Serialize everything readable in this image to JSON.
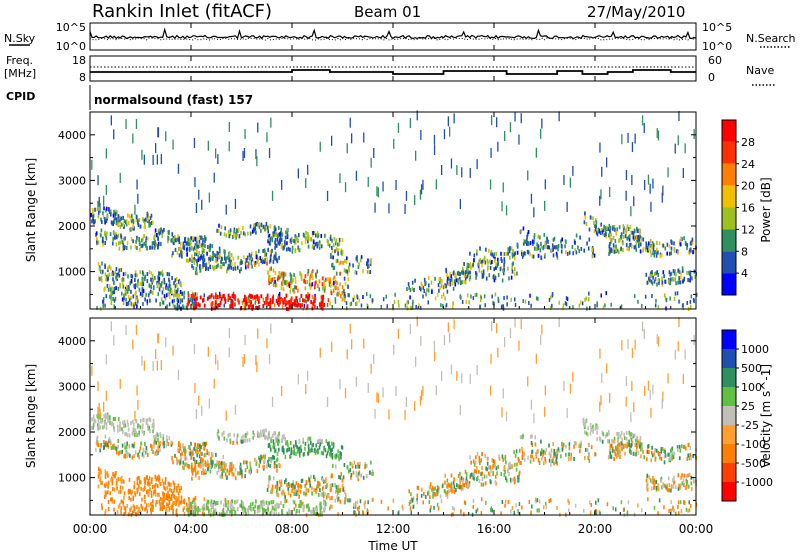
{
  "header": {
    "station": "Rankin Inlet (fitACF)",
    "beam": "Beam 01",
    "date": "27/May/2010"
  },
  "top_labels": {
    "nsky": "N.Sky",
    "nsearch": "N.Search",
    "freq_line1": "Freq.",
    "freq_line2": "[MHz]",
    "nave": "Nave",
    "cpid": "CPID",
    "cpid_value": "normalsound (fast) 157",
    "noise_tick_high": "10^5",
    "noise_tick_low": "10^0",
    "freq_tick_high": "18",
    "freq_tick_low": "8",
    "nave_tick_high": "60",
    "nave_tick_low": "0"
  },
  "colors": {
    "power": [
      "#0000ff",
      "#1f4fb0",
      "#2f8f5f",
      "#a0c020",
      "#f0c000",
      "#ff8000",
      "#ff3000",
      "#ff0000"
    ],
    "velocity": [
      "#ff0000",
      "#ff4000",
      "#ff8000",
      "#ffa030",
      "#c0c0b8",
      "#60c040",
      "#2f8f5f",
      "#1f4fb0",
      "#0000ff"
    ]
  },
  "chart_data": [
    {
      "type": "heatmap",
      "name": "power-panel",
      "xlabel": "",
      "ylabel": "Slant Range [km]",
      "x_range_hours": [
        0,
        24
      ],
      "ylim": [
        180,
        4500
      ],
      "yticks": [
        1000,
        2000,
        3000,
        4000
      ],
      "colorbar": {
        "label": "Power [dB]",
        "ticks": [
          "4",
          "8",
          "12",
          "16",
          "20",
          "24",
          "28"
        ]
      }
    },
    {
      "type": "heatmap",
      "name": "velocity-panel",
      "xlabel": "Time UT",
      "ylabel": "Slant Range [km]",
      "x_range_hours": [
        0,
        24
      ],
      "ylim": [
        180,
        4500
      ],
      "yticks": [
        1000,
        2000,
        3000,
        4000
      ],
      "xticks": [
        "00:00",
        "04:00",
        "08:00",
        "12:00",
        "16:00",
        "20:00",
        "00:00"
      ],
      "colorbar": {
        "label": "Velocity [m s^-1]",
        "ticks": [
          "1000",
          "500",
          "100",
          "25",
          "-25",
          "-100",
          "-500",
          "-1000"
        ]
      }
    }
  ]
}
